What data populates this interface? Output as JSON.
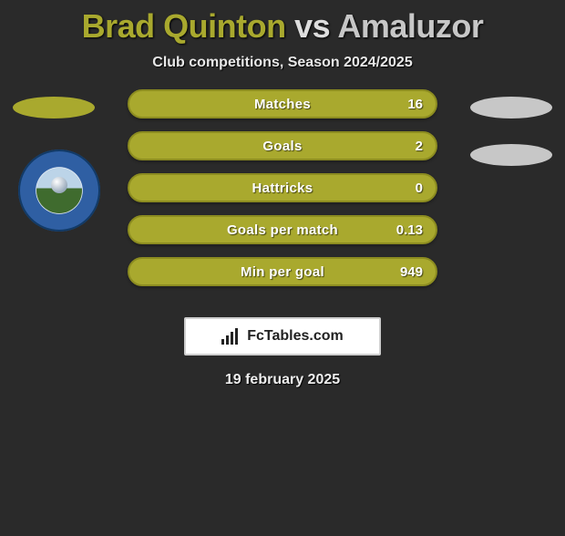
{
  "title": {
    "player1": "Brad Quinton",
    "vs": "vs",
    "player2": "Amaluzor",
    "p1_color": "#a9a92e",
    "p2_color": "#c7c7c7"
  },
  "subtitle": "Club competitions, Season 2024/2025",
  "background_color": "#2a2a2a",
  "side_ellipses": {
    "left_color": "#a9a92e",
    "right_color": "#c7c7c7"
  },
  "bars": {
    "fill_color": "#a9a92e",
    "border_color": "#8c8c20",
    "label_color": "#ffffff",
    "label_fontsize": 15,
    "rows": [
      {
        "label": "Matches",
        "value": "16"
      },
      {
        "label": "Goals",
        "value": "2"
      },
      {
        "label": "Hattricks",
        "value": "0"
      },
      {
        "label": "Goals per match",
        "value": "0.13"
      },
      {
        "label": "Min per goal",
        "value": "949"
      }
    ]
  },
  "footer": {
    "site_text": "FcTables.com",
    "date_text": "19 february 2025",
    "box_border": "#cfcfcf",
    "box_bg": "#ffffff"
  },
  "crest": {
    "outer_ring_color": "#2f5fa3",
    "inner_top": "#bcd4e8",
    "inner_bottom": "#3f6b2e"
  }
}
